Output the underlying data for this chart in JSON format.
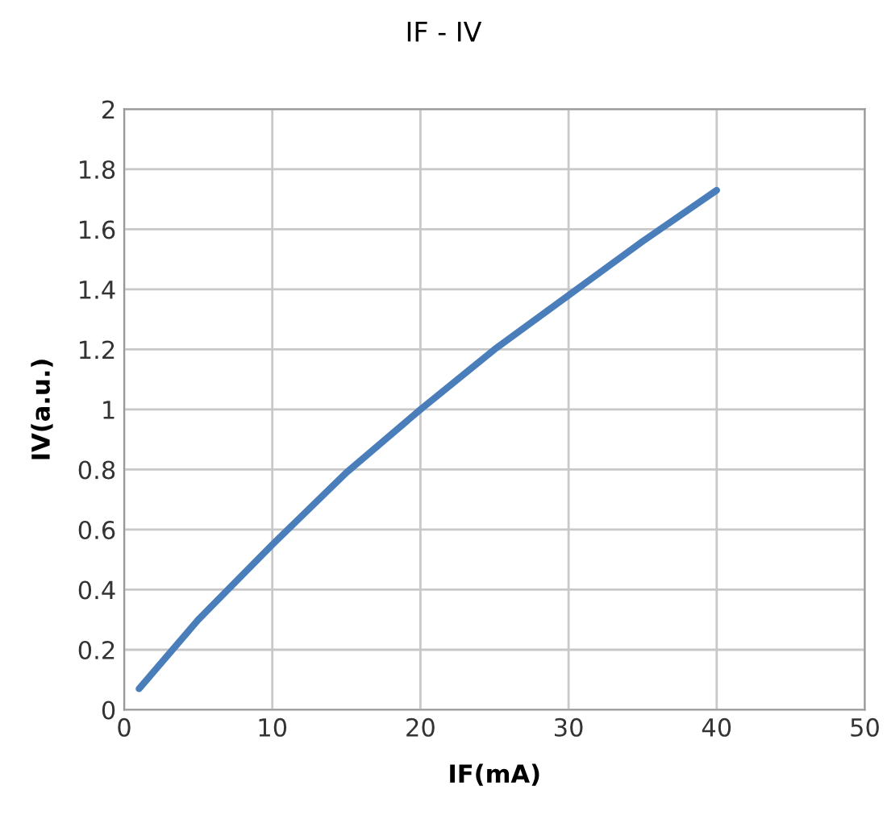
{
  "chart_data": {
    "type": "line",
    "title": "IF - IV",
    "xlabel": "IF(mA)",
    "ylabel": "IV(a.u.)",
    "x": [
      1,
      5,
      10,
      15,
      20,
      25,
      30,
      35,
      40
    ],
    "series": [
      {
        "color": "#4a7ebb",
        "values": [
          0.07,
          0.3,
          0.55,
          0.79,
          1.0,
          1.2,
          1.38,
          1.56,
          1.73
        ]
      }
    ],
    "xlim": [
      0,
      50
    ],
    "xticks": [
      0,
      10,
      20,
      30,
      40,
      50
    ],
    "ylim": [
      0,
      2
    ],
    "yticks": [
      0,
      0.2,
      0.4,
      0.6,
      0.8,
      1,
      1.2,
      1.4,
      1.6,
      1.8,
      2
    ],
    "grid": true,
    "legend": false,
    "marker": "none",
    "line_style": "solid"
  }
}
